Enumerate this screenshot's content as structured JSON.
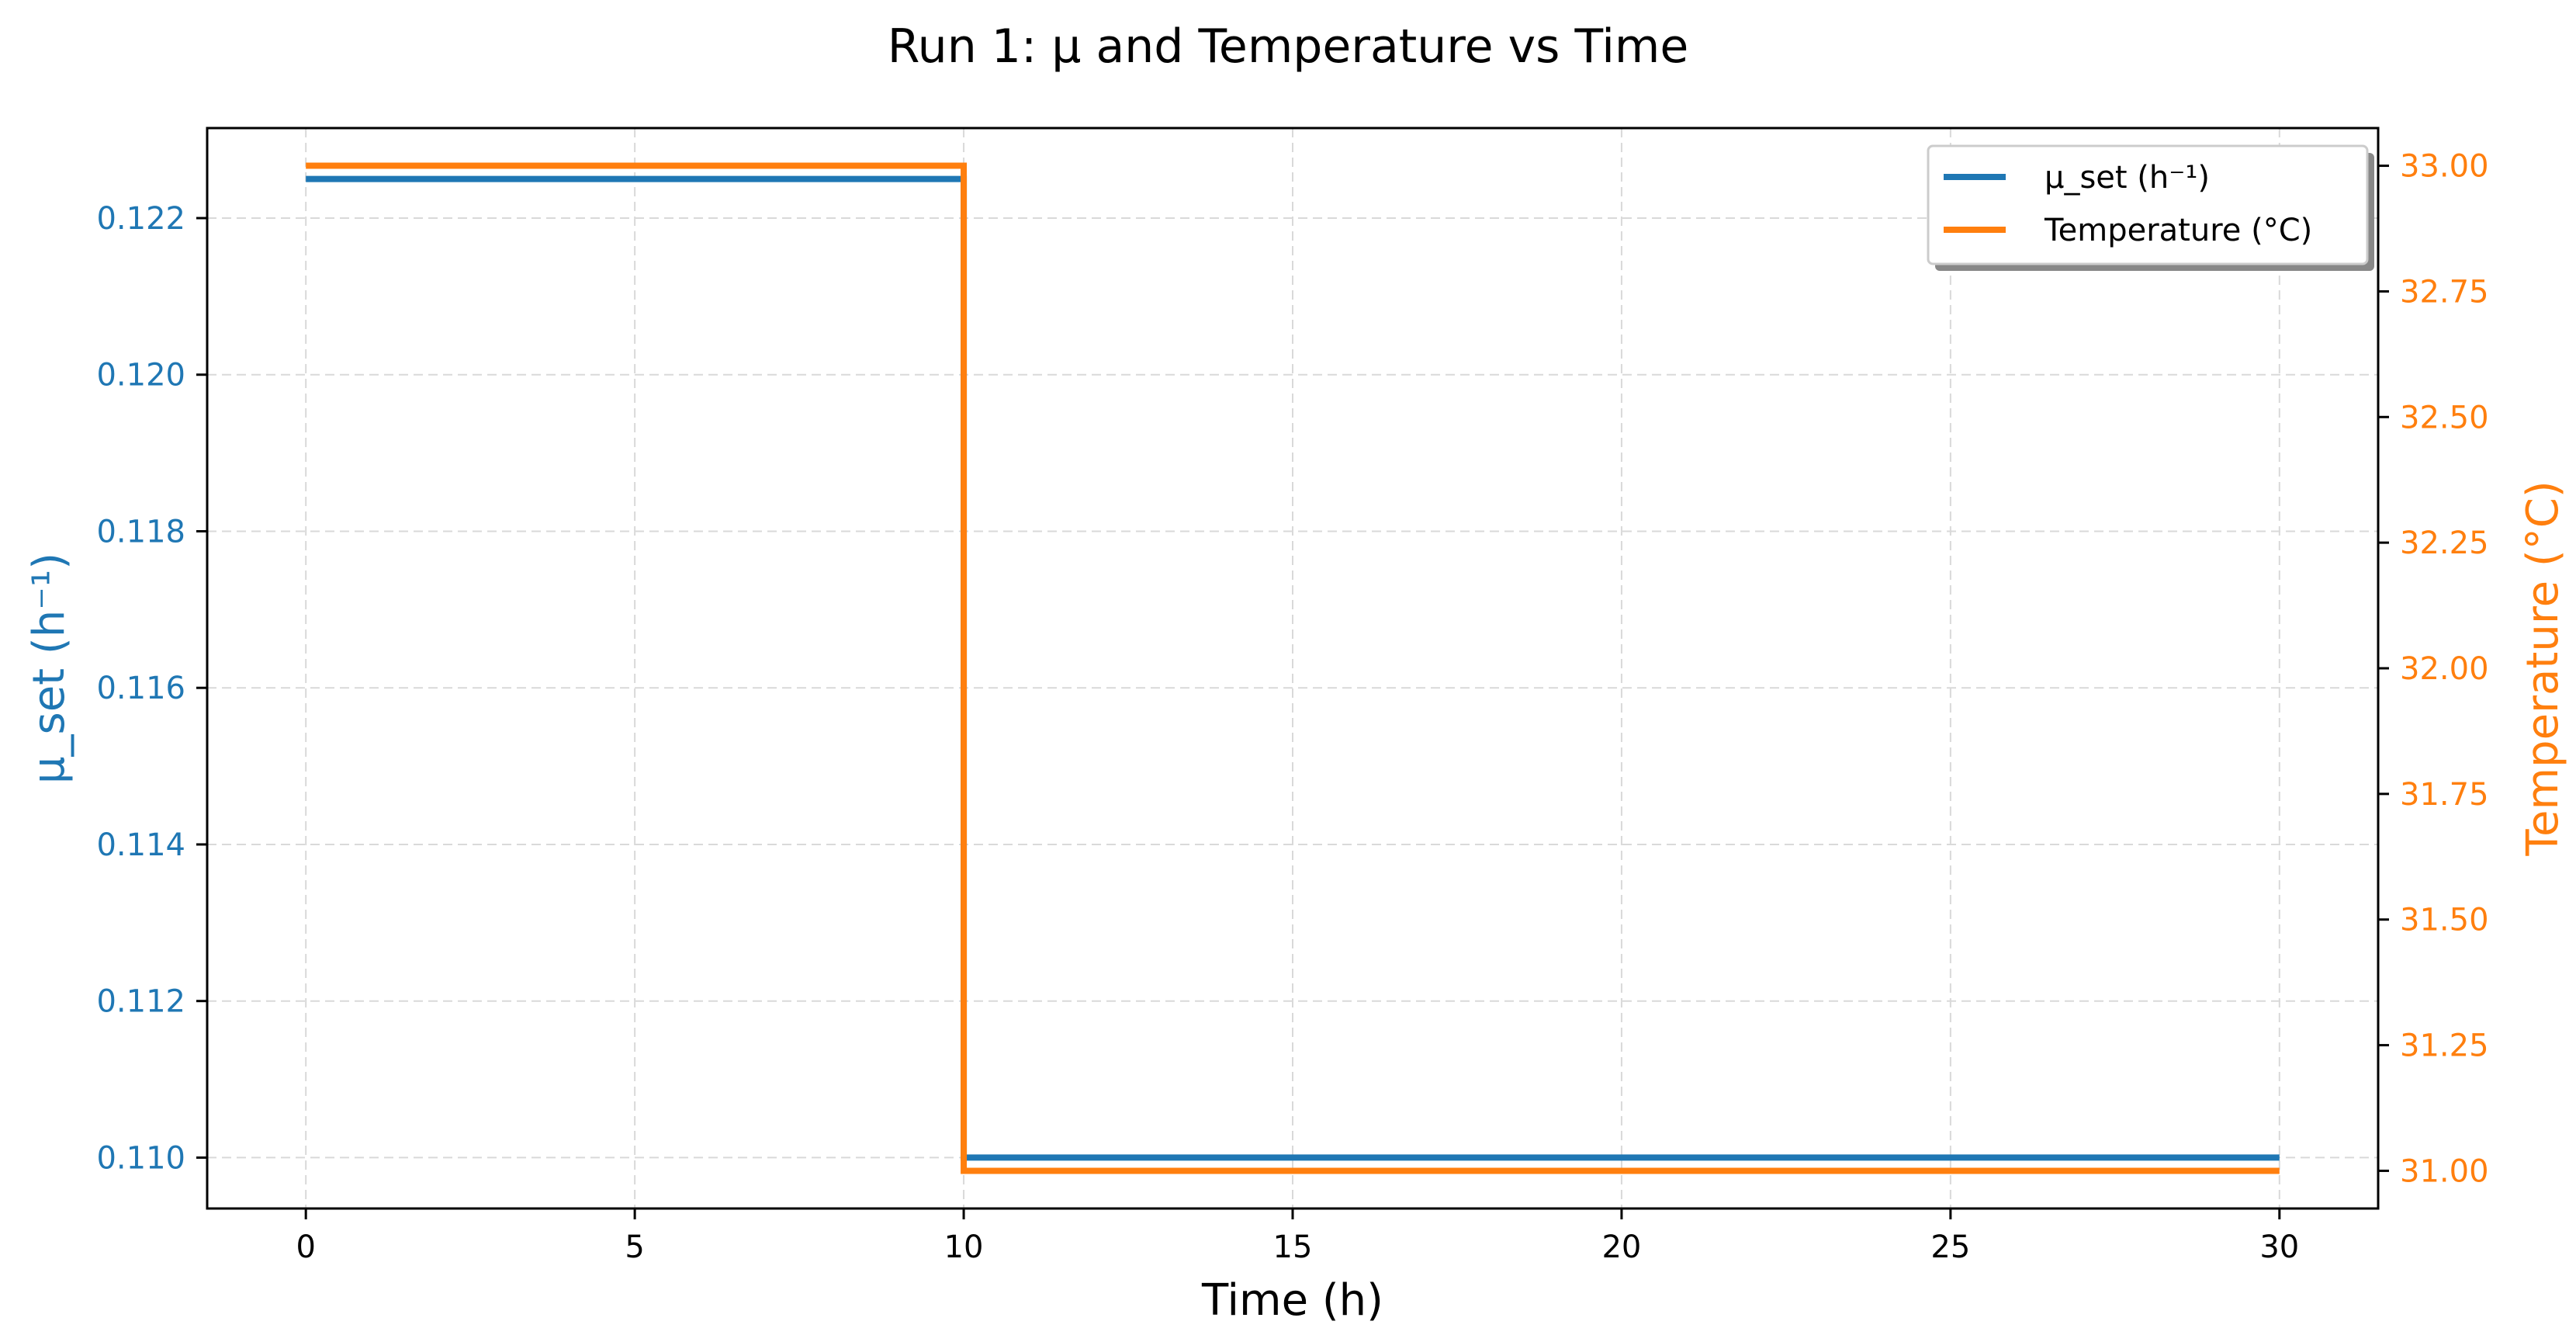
{
  "chart_data": {
    "type": "line",
    "title": "Run 1: μ and Temperature vs Time",
    "xlabel": "Time (h)",
    "ylabel_left": "μ_set (h⁻¹)",
    "ylabel_right": "Temperature (°C)",
    "xlim": [
      -1.5,
      31.5
    ],
    "ylim_left": [
      0.10935,
      0.12315
    ],
    "ylim_right": [
      30.925,
      33.075
    ],
    "x_ticks": [
      "0",
      "5",
      "10",
      "15",
      "20",
      "25",
      "30"
    ],
    "y_left_ticks": [
      "0.110",
      "0.112",
      "0.114",
      "0.116",
      "0.118",
      "0.120",
      "0.122"
    ],
    "y_right_ticks": [
      "31.00",
      "31.25",
      "31.50",
      "31.75",
      "32.00",
      "32.25",
      "32.50",
      "32.75",
      "33.00"
    ],
    "grid": true,
    "legend_position": "top-right",
    "colors": {
      "mu": "#1f77b4",
      "temperature": "#ff7f0e"
    },
    "series": [
      {
        "name": "μ_set (h⁻¹)",
        "axis": "left",
        "step": "post",
        "x": [
          0,
          10,
          30
        ],
        "y": [
          0.1225,
          0.11,
          0.11
        ]
      },
      {
        "name": "Temperature (°C)",
        "axis": "right",
        "step": "post",
        "x": [
          0,
          10,
          30
        ],
        "y": [
          33.0,
          31.0,
          31.0
        ]
      }
    ]
  }
}
